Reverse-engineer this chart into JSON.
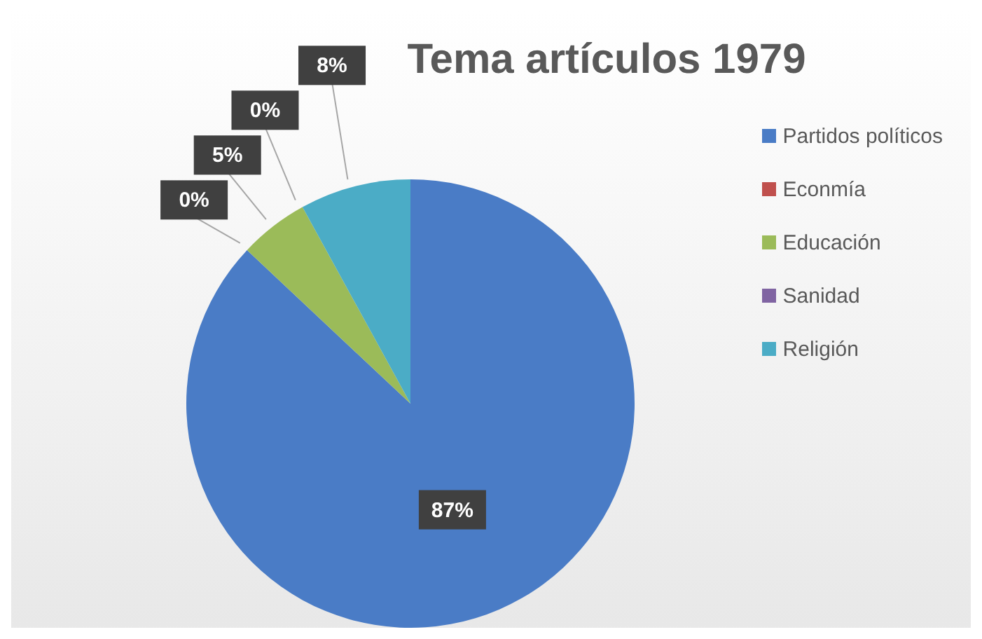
{
  "chart_data": {
    "type": "pie",
    "title": "Tema artículos 1979",
    "categories": [
      "Partidos políticos",
      "Econmía",
      "Educación",
      "Sanidad",
      "Religión"
    ],
    "values": [
      87,
      0,
      5,
      0,
      8
    ],
    "colors": [
      "#4a7cc6",
      "#c0504d",
      "#9bbb59",
      "#8064a2",
      "#4bacc6"
    ],
    "value_labels": [
      "87%",
      "0%",
      "5%",
      "0%",
      "8%"
    ],
    "legend": "right"
  }
}
